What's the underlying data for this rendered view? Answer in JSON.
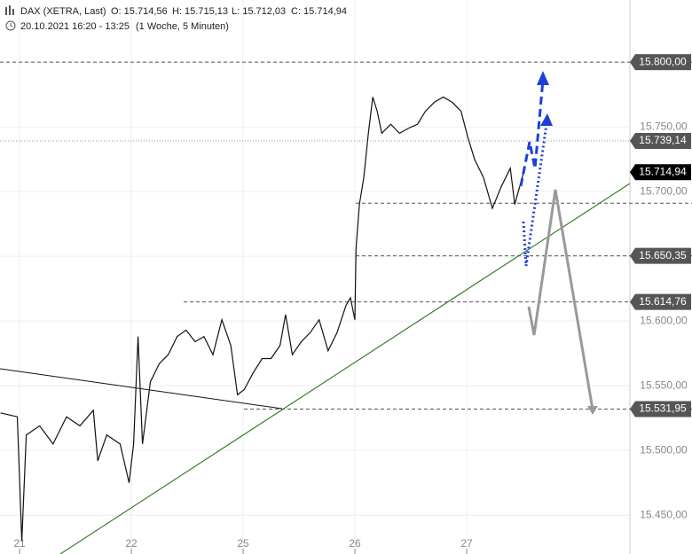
{
  "chart_data": {
    "type": "line",
    "title": "DAX (XETRA, Last)",
    "ohlc": [
      "O: 15.714,56",
      "H: 15.715,13",
      "L: 15.712,03",
      "C: 15.714,94"
    ],
    "subtitle": "20.10.2021 16:20 - 13:25",
    "period": "(1 Woche, 5 Minuten)",
    "x": [
      -0.17,
      -0.02,
      0.02,
      0.06,
      0.18,
      0.3,
      0.42,
      0.54,
      0.66,
      0.7,
      0.78,
      0.9,
      0.98,
      1.02,
      1.06,
      1.1,
      1.17,
      1.25,
      1.33,
      1.41,
      1.49,
      1.57,
      1.65,
      1.73,
      1.81,
      1.89,
      1.95,
      2.01,
      2.09,
      2.17,
      2.25,
      2.33,
      2.38,
      2.44,
      2.52,
      2.6,
      2.68,
      2.76,
      2.84,
      2.92,
      2.96,
      3.0,
      3.01,
      3.04,
      3.08,
      3.12,
      3.16,
      3.2,
      3.24,
      3.32,
      3.4,
      3.48,
      3.56,
      3.63,
      3.71,
      3.79,
      3.87,
      3.95,
      4.01,
      4.07,
      4.15,
      4.23,
      4.31,
      4.39,
      4.43,
      4.51
    ],
    "series": [
      {
        "name": "DAX",
        "color": "#111111",
        "values": [
          15529,
          15526,
          15430,
          15512,
          15519,
          15505,
          15526,
          15519,
          15531,
          15492,
          15512,
          15505,
          15475,
          15505,
          15588,
          15505,
          15553,
          15567,
          15574,
          15588,
          15593,
          15584,
          15588,
          15574,
          15601,
          15581,
          15543,
          15547,
          15560,
          15571,
          15571,
          15581,
          15605,
          15574,
          15584,
          15591,
          15601,
          15577,
          15591,
          15612,
          15618,
          15601,
          15656,
          15690,
          15711,
          15745,
          15773,
          15762,
          15745,
          15752,
          15745,
          15749,
          15752,
          15762,
          15769,
          15773,
          15769,
          15762,
          15742,
          15725,
          15711,
          15687,
          15704,
          15718,
          15690,
          15715
        ]
      }
    ],
    "xlim": [
      -0.175,
      5.46
    ],
    "xticks": [
      {
        "value": 0,
        "label": "21"
      },
      {
        "value": 1,
        "label": "22"
      },
      {
        "value": 2,
        "label": "25"
      },
      {
        "value": 3,
        "label": "26"
      },
      {
        "value": 4,
        "label": "27"
      }
    ],
    "ylim": [
      15420,
      15848
    ],
    "yticks": [
      {
        "value": 15450,
        "label": "15.450,00"
      },
      {
        "value": 15500,
        "label": "15.500,00"
      },
      {
        "value": 15550,
        "label": "15.550,00"
      },
      {
        "value": 15600,
        "label": "15.600,00"
      },
      {
        "value": 15650,
        "label": "15.650,00"
      },
      {
        "value": 15700,
        "label": "15.700,00"
      },
      {
        "value": 15750,
        "label": "15.750,00"
      },
      {
        "value": 15800,
        "label": "15.800,00"
      }
    ],
    "grid": true,
    "levels": [
      {
        "value": 15800,
        "label": "15.800,00",
        "style": "dashed"
      },
      {
        "value": 15739.14,
        "label": "15.739,14",
        "style": "dotted"
      },
      {
        "value": 15714.94,
        "label": "15.714,94",
        "style": "current"
      },
      {
        "value": 15650.35,
        "label": "15.650,35",
        "style": "dashed"
      },
      {
        "value": 15614.76,
        "label": "15.614,76",
        "style": "dashed"
      },
      {
        "value": 15531.95,
        "label": "15.531,95",
        "style": "dashed"
      },
      {
        "value": 15691,
        "style": "dashed"
      }
    ]
  }
}
